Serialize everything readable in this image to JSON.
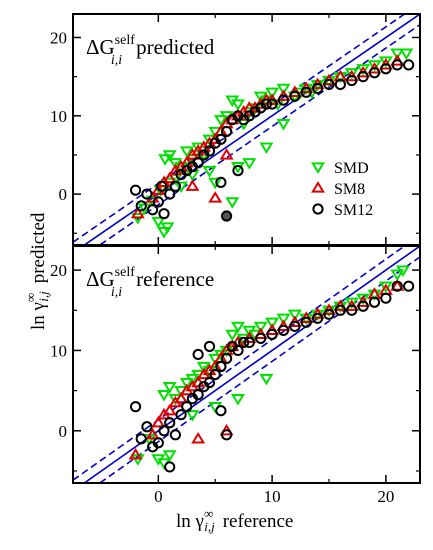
{
  "chart_data": [
    {
      "type": "scatter",
      "panel_title": {
        "delta": "ΔG",
        "sup": "self",
        "sub": "i,i",
        "text": "predicted"
      },
      "xlim": [
        -7.5,
        23
      ],
      "ylim": [
        -6.5,
        23
      ],
      "xticks": [
        0,
        10,
        20
      ],
      "yticks": [
        0,
        10,
        20
      ],
      "show_xtick_labels": false,
      "legend": {
        "placement": "right",
        "entries": [
          {
            "name": "SMD",
            "marker": "triangle-down",
            "color": "#00e000"
          },
          {
            "name": "SM8",
            "marker": "triangle-up",
            "color": "#e00000"
          },
          {
            "name": "SM12",
            "marker": "circle",
            "color": "#000000"
          }
        ]
      },
      "series": [
        {
          "name": "SMD",
          "marker": "triangle-down",
          "color": "#00e000",
          "points": [
            [
              -1.8,
              -3.0
            ],
            [
              -1.2,
              -1.8
            ],
            [
              -0.5,
              -0.8
            ],
            [
              0.0,
              -3.5
            ],
            [
              0.5,
              -4.8
            ],
            [
              0.8,
              -4.2
            ],
            [
              0.2,
              0.5
            ],
            [
              0.6,
              4.5
            ],
            [
              1.0,
              5.0
            ],
            [
              1.5,
              4.0
            ],
            [
              1.5,
              2.0
            ],
            [
              2.0,
              3.5
            ],
            [
              2.5,
              5.5
            ],
            [
              3.0,
              4.5
            ],
            [
              3.5,
              6.0
            ],
            [
              4.0,
              5.0
            ],
            [
              4.5,
              7.0
            ],
            [
              5.0,
              8.0
            ],
            [
              5.5,
              9.5
            ],
            [
              6.0,
              10.0
            ],
            [
              6.5,
              12.0
            ],
            [
              7.0,
              11.5
            ],
            [
              7.5,
              9.0
            ],
            [
              8.0,
              10.5
            ],
            [
              8.5,
              11.0
            ],
            [
              9.0,
              12.5
            ],
            [
              9.5,
              12.0
            ],
            [
              10.0,
              13.0
            ],
            [
              10.5,
              11.5
            ],
            [
              11.0,
              13.5
            ],
            [
              12.0,
              12.5
            ],
            [
              12.5,
              13.0
            ],
            [
              13.0,
              13.5
            ],
            [
              13.5,
              13.0
            ],
            [
              14.0,
              14.0
            ],
            [
              15.0,
              14.5
            ],
            [
              16.0,
              15.0
            ],
            [
              17.0,
              15.5
            ],
            [
              18.0,
              16.0
            ],
            [
              19.0,
              16.5
            ],
            [
              20.0,
              17.0
            ],
            [
              21.0,
              18.0
            ],
            [
              21.8,
              18.0
            ],
            [
              2.0,
              1.0
            ],
            [
              3.0,
              2.5
            ],
            [
              1.0,
              1.5
            ],
            [
              4.5,
              3.0
            ],
            [
              7.0,
              3.5
            ],
            [
              8.0,
              4.0
            ],
            [
              6.5,
              -1.0
            ],
            [
              5.0,
              1.5
            ],
            [
              9.5,
              6.0
            ],
            [
              11.0,
              9.0
            ]
          ]
        },
        {
          "name": "SM8",
          "marker": "triangle-up",
          "color": "#e00000",
          "points": [
            [
              -1.8,
              -2.5
            ],
            [
              -0.5,
              -0.5
            ],
            [
              0.0,
              0.5
            ],
            [
              0.5,
              1.5
            ],
            [
              1.0,
              2.0
            ],
            [
              1.5,
              3.0
            ],
            [
              2.0,
              3.5
            ],
            [
              2.5,
              4.0
            ],
            [
              3.0,
              5.0
            ],
            [
              3.5,
              5.5
            ],
            [
              4.0,
              6.0
            ],
            [
              4.5,
              6.5
            ],
            [
              5.0,
              7.0
            ],
            [
              5.5,
              8.0
            ],
            [
              6.0,
              9.0
            ],
            [
              6.5,
              9.5
            ],
            [
              7.0,
              10.0
            ],
            [
              7.5,
              10.5
            ],
            [
              8.0,
              11.0
            ],
            [
              8.5,
              11.0
            ],
            [
              9.0,
              11.5
            ],
            [
              9.5,
              12.0
            ],
            [
              10.0,
              12.0
            ],
            [
              11.0,
              12.5
            ],
            [
              12.0,
              13.0
            ],
            [
              13.0,
              13.5
            ],
            [
              14.0,
              14.0
            ],
            [
              15.0,
              14.5
            ],
            [
              16.0,
              15.0
            ],
            [
              17.0,
              15.0
            ],
            [
              18.0,
              15.5
            ],
            [
              19.0,
              16.0
            ],
            [
              20.0,
              16.5
            ],
            [
              21.0,
              17.0
            ],
            [
              6.0,
              5.0
            ],
            [
              3.0,
              1.0
            ],
            [
              5.0,
              -0.5
            ]
          ]
        },
        {
          "name": "SM12",
          "marker": "circle",
          "color": "#000000",
          "points": [
            [
              -2.0,
              0.5
            ],
            [
              -1.5,
              -1.5
            ],
            [
              -1.0,
              0.0
            ],
            [
              -0.5,
              -2.0
            ],
            [
              0.0,
              -1.0
            ],
            [
              0.3,
              1.0
            ],
            [
              0.5,
              -2.5
            ],
            [
              1.0,
              0.0
            ],
            [
              1.5,
              1.0
            ],
            [
              2.0,
              2.5
            ],
            [
              2.5,
              3.0
            ],
            [
              3.0,
              3.5
            ],
            [
              3.5,
              4.0
            ],
            [
              4.0,
              5.0
            ],
            [
              4.5,
              5.5
            ],
            [
              5.0,
              6.5
            ],
            [
              5.5,
              7.0
            ],
            [
              6.0,
              8.0
            ],
            [
              6.5,
              9.5
            ],
            [
              7.0,
              10.0
            ],
            [
              7.5,
              9.5
            ],
            [
              8.0,
              10.0
            ],
            [
              8.5,
              10.5
            ],
            [
              9.0,
              11.0
            ],
            [
              9.5,
              11.5
            ],
            [
              10.0,
              11.5
            ],
            [
              11.0,
              12.0
            ],
            [
              12.0,
              12.5
            ],
            [
              13.0,
              13.0
            ],
            [
              14.0,
              13.5
            ],
            [
              15.0,
              14.0
            ],
            [
              16.0,
              14.0
            ],
            [
              17.0,
              14.5
            ],
            [
              18.0,
              15.0
            ],
            [
              19.0,
              15.5
            ],
            [
              20.0,
              16.0
            ],
            [
              21.0,
              16.5
            ],
            [
              22.0,
              16.5
            ],
            [
              5.5,
              1.5
            ],
            [
              7.0,
              3.0
            ]
          ]
        },
        {
          "name": "SM12-outlier",
          "marker": "circle-filled",
          "color": "#000000",
          "points": [
            [
              6.0,
              -2.8
            ]
          ]
        }
      ]
    },
    {
      "type": "scatter",
      "panel_title": {
        "delta": "ΔG",
        "sup": "self",
        "sub": "i,i",
        "text": "reference"
      },
      "xlim": [
        -7.5,
        23
      ],
      "ylim": [
        -6.5,
        23
      ],
      "xticks": [
        0,
        10,
        20
      ],
      "yticks": [
        0,
        10,
        20
      ],
      "show_xtick_labels": true,
      "series": [
        {
          "name": "SMD",
          "marker": "triangle-down",
          "color": "#00e000",
          "points": [
            [
              -1.8,
              -3.5
            ],
            [
              -0.8,
              -1.0
            ],
            [
              0.0,
              -3.5
            ],
            [
              0.5,
              -4.0
            ],
            [
              1.0,
              -3.0
            ],
            [
              0.5,
              4.5
            ],
            [
              1.0,
              5.5
            ],
            [
              1.5,
              4.0
            ],
            [
              2.0,
              5.0
            ],
            [
              2.5,
              6.0
            ],
            [
              3.0,
              6.5
            ],
            [
              3.5,
              7.0
            ],
            [
              4.0,
              8.0
            ],
            [
              4.5,
              7.5
            ],
            [
              5.0,
              9.0
            ],
            [
              5.5,
              9.5
            ],
            [
              6.0,
              10.0
            ],
            [
              6.5,
              12.0
            ],
            [
              7.0,
              13.0
            ],
            [
              7.5,
              11.5
            ],
            [
              8.0,
              12.5
            ],
            [
              8.5,
              12.0
            ],
            [
              9.0,
              13.0
            ],
            [
              10.0,
              13.5
            ],
            [
              11.0,
              14.0
            ],
            [
              12.0,
              14.5
            ],
            [
              13.0,
              14.0
            ],
            [
              14.0,
              14.5
            ],
            [
              15.0,
              15.0
            ],
            [
              16.0,
              15.5
            ],
            [
              17.0,
              16.0
            ],
            [
              18.0,
              16.5
            ],
            [
              19.0,
              17.0
            ],
            [
              20.0,
              18.0
            ],
            [
              21.0,
              19.5
            ],
            [
              21.5,
              20.0
            ],
            [
              3.0,
              2.0
            ],
            [
              5.0,
              3.0
            ],
            [
              7.0,
              4.0
            ],
            [
              9.5,
              6.5
            ]
          ]
        },
        {
          "name": "SM8",
          "marker": "triangle-up",
          "color": "#e00000",
          "points": [
            [
              -2.0,
              -3.0
            ],
            [
              -0.5,
              -0.5
            ],
            [
              0.0,
              1.0
            ],
            [
              0.5,
              2.0
            ],
            [
              1.0,
              2.5
            ],
            [
              1.5,
              3.5
            ],
            [
              2.0,
              4.0
            ],
            [
              2.5,
              5.0
            ],
            [
              3.0,
              5.5
            ],
            [
              3.5,
              6.0
            ],
            [
              4.0,
              7.0
            ],
            [
              4.5,
              7.5
            ],
            [
              5.0,
              8.0
            ],
            [
              5.5,
              9.0
            ],
            [
              6.0,
              10.0
            ],
            [
              6.5,
              10.5
            ],
            [
              7.0,
              11.0
            ],
            [
              8.0,
              11.5
            ],
            [
              9.0,
              12.0
            ],
            [
              10.0,
              12.5
            ],
            [
              11.0,
              13.0
            ],
            [
              12.0,
              13.5
            ],
            [
              13.0,
              14.0
            ],
            [
              14.0,
              14.5
            ],
            [
              15.0,
              15.0
            ],
            [
              16.0,
              15.5
            ],
            [
              17.0,
              15.5
            ],
            [
              18.0,
              16.0
            ],
            [
              19.0,
              17.0
            ],
            [
              20.0,
              17.5
            ],
            [
              21.0,
              18.0
            ],
            [
              6.0,
              0.0
            ],
            [
              3.5,
              -1.0
            ]
          ]
        },
        {
          "name": "SM12",
          "marker": "circle",
          "color": "#000000",
          "points": [
            [
              -2.0,
              3.0
            ],
            [
              -1.5,
              -1.0
            ],
            [
              -1.0,
              0.5
            ],
            [
              -0.5,
              -2.0
            ],
            [
              0.0,
              -1.5
            ],
            [
              0.5,
              0.0
            ],
            [
              1.0,
              1.0
            ],
            [
              1.5,
              -0.5
            ],
            [
              2.0,
              2.0
            ],
            [
              2.5,
              3.0
            ],
            [
              3.0,
              4.0
            ],
            [
              3.5,
              4.5
            ],
            [
              4.0,
              5.5
            ],
            [
              4.5,
              6.0
            ],
            [
              5.0,
              7.0
            ],
            [
              5.5,
              8.0
            ],
            [
              6.0,
              9.0
            ],
            [
              6.5,
              10.5
            ],
            [
              7.0,
              10.0
            ],
            [
              7.5,
              11.0
            ],
            [
              8.0,
              11.0
            ],
            [
              9.0,
              11.5
            ],
            [
              10.0,
              12.0
            ],
            [
              11.0,
              12.5
            ],
            [
              12.0,
              13.0
            ],
            [
              13.0,
              13.5
            ],
            [
              14.0,
              14.0
            ],
            [
              15.0,
              14.5
            ],
            [
              16.0,
              15.0
            ],
            [
              17.0,
              15.0
            ],
            [
              18.0,
              15.5
            ],
            [
              19.0,
              16.0
            ],
            [
              20.0,
              16.5
            ],
            [
              21.0,
              18.0
            ],
            [
              22.0,
              18.0
            ],
            [
              1.0,
              -4.5
            ],
            [
              5.5,
              2.5
            ],
            [
              6.0,
              -0.5
            ],
            [
              4.5,
              10.5
            ],
            [
              3.5,
              9.5
            ]
          ]
        }
      ]
    }
  ],
  "axes": {
    "xlabel": {
      "main": "ln γ",
      "sup": "∞",
      "sub": "i,j",
      "text": "reference"
    },
    "ylabel": {
      "main": "ln γ",
      "sup": "∞",
      "sub": "i,j",
      "text": "predicted"
    }
  },
  "reference_lines": {
    "solid": "y = x",
    "dashed_offset": 1.36,
    "color": "#0000cc"
  }
}
